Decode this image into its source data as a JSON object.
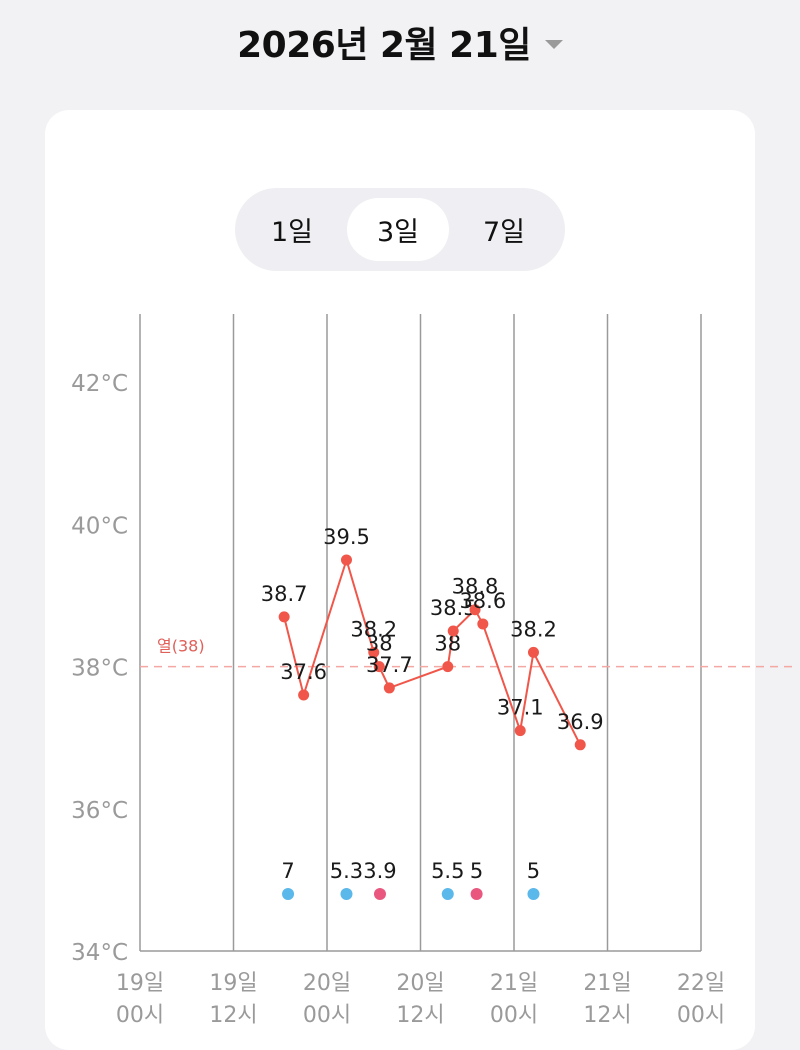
{
  "header": {
    "date_title": "2026년 2월 21일",
    "dropdown_icon": "chevron-down-icon"
  },
  "range_tabs": [
    {
      "label": "1일",
      "selected": false
    },
    {
      "label": "3일",
      "selected": true
    },
    {
      "label": "7일",
      "selected": false
    }
  ],
  "colors": {
    "temp_line": "#f0574a",
    "fever_line": "#f4a8a3",
    "fever_label": "#e0605a",
    "dose_blue": "#5bb8ea",
    "dose_pink": "#e9577f",
    "grid": "#9a9a9a",
    "axis_text": "#9a9a9a"
  },
  "chart_data": {
    "type": "line",
    "y_unit": "°C",
    "ylim": [
      34,
      42.5
    ],
    "y_ticks": [
      {
        "value": 34,
        "label": "34°C"
      },
      {
        "value": 36,
        "label": "36°C"
      },
      {
        "value": 38,
        "label": "38°C"
      },
      {
        "value": 40,
        "label": "40°C"
      },
      {
        "value": 42,
        "label": "42°C"
      }
    ],
    "x_range_hours": [
      0,
      72
    ],
    "x_ticks": [
      {
        "hour": 0,
        "day": "19일",
        "time": "00시"
      },
      {
        "hour": 12,
        "day": "19일",
        "time": "12시"
      },
      {
        "hour": 24,
        "day": "20일",
        "time": "00시"
      },
      {
        "hour": 36,
        "day": "20일",
        "time": "12시"
      },
      {
        "hour": 48,
        "day": "21일",
        "time": "00시"
      },
      {
        "hour": 60,
        "day": "21일",
        "time": "12시"
      },
      {
        "hour": 72,
        "day": "22일",
        "time": "00시"
      }
    ],
    "threshold": {
      "value": 38,
      "label": "열(38)"
    },
    "series": [
      {
        "points": [
          {
            "x": 18.5,
            "y": 38.7,
            "label": "38.7"
          },
          {
            "x": 21.0,
            "y": 37.6,
            "label": "37.6"
          },
          {
            "x": 26.5,
            "y": 39.5,
            "label": "39.5"
          },
          {
            "x": 30.0,
            "y": 38.2,
            "label": "38.2"
          },
          {
            "x": 30.7,
            "y": 38.0,
            "label": "38"
          },
          {
            "x": 32.0,
            "y": 37.7,
            "label": "37.7"
          },
          {
            "x": 39.5,
            "y": 38.0,
            "label": "38"
          },
          {
            "x": 40.2,
            "y": 38.5,
            "label": "38.5"
          },
          {
            "x": 43.0,
            "y": 38.8,
            "label": "38.8"
          },
          {
            "x": 44.0,
            "y": 38.6,
            "label": "38.6"
          },
          {
            "x": 48.8,
            "y": 37.1,
            "label": "37.1"
          },
          {
            "x": 50.5,
            "y": 38.2,
            "label": "38.2"
          },
          {
            "x": 56.5,
            "y": 36.9,
            "label": "36.9"
          }
        ]
      }
    ],
    "doses": [
      {
        "x": 19.0,
        "value": "7",
        "type": "blue"
      },
      {
        "x": 26.5,
        "value": "5.3",
        "type": "blue"
      },
      {
        "x": 30.8,
        "value": "3.9",
        "type": "pink"
      },
      {
        "x": 39.5,
        "value": "5.5",
        "type": "blue"
      },
      {
        "x": 43.2,
        "value": "5",
        "type": "pink"
      },
      {
        "x": 50.5,
        "value": "5",
        "type": "blue"
      }
    ]
  }
}
